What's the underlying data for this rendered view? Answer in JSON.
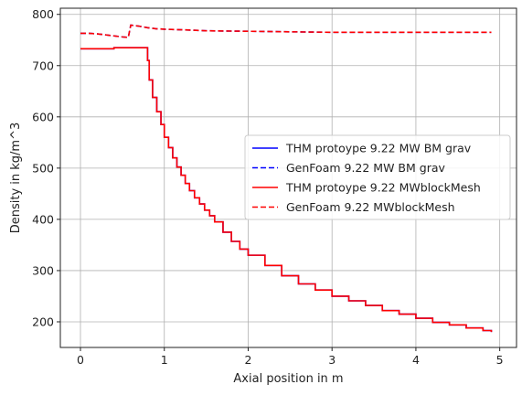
{
  "chart_data": {
    "type": "line",
    "title": "",
    "xlabel": "Axial position in m",
    "ylabel": "Density in kg/m^3",
    "xlim": [
      -0.24,
      5.2
    ],
    "ylim": [
      150,
      812
    ],
    "xticks": [
      0,
      1,
      2,
      3,
      4,
      5
    ],
    "yticks": [
      200,
      300,
      400,
      500,
      600,
      700,
      800
    ],
    "grid": true,
    "legend_position": "center-right",
    "series": [
      {
        "name": "THM protoype 9.22 MW BM grav",
        "color": "#0000ff",
        "style": "solid",
        "step": true,
        "x": [
          0,
          0.4,
          0.8,
          0.82,
          0.86,
          0.91,
          0.96,
          1.0,
          1.05,
          1.1,
          1.15,
          1.2,
          1.25,
          1.3,
          1.36,
          1.42,
          1.48,
          1.54,
          1.6,
          1.7,
          1.8,
          1.9,
          2.0,
          2.2,
          2.4,
          2.6,
          2.8,
          3.0,
          3.2,
          3.4,
          3.6,
          3.8,
          4.0,
          4.2,
          4.4,
          4.6,
          4.8,
          4.9
        ],
        "y": [
          733,
          735,
          710,
          672,
          638,
          610,
          585,
          560,
          540,
          520,
          502,
          486,
          470,
          456,
          442,
          430,
          418,
          407,
          395,
          375,
          357,
          342,
          330,
          310,
          290,
          274,
          262,
          250,
          241,
          232,
          222,
          215,
          207,
          199,
          194,
          188,
          183,
          180
        ]
      },
      {
        "name": "GenFoam 9.22 MW BM grav",
        "color": "#0000ff",
        "style": "dashed",
        "step": false,
        "x": [
          0,
          0.1,
          0.2,
          0.3,
          0.4,
          0.5,
          0.57,
          0.6,
          0.7,
          0.8,
          0.9,
          1.0,
          1.2,
          1.5,
          2.0,
          2.5,
          3.0,
          3.5,
          4.0,
          4.5,
          4.9
        ],
        "y": [
          763,
          763,
          762,
          760,
          758,
          756,
          755,
          779,
          777,
          774,
          772,
          771,
          770,
          768,
          767,
          766,
          765,
          765,
          765,
          765,
          765
        ]
      },
      {
        "name": "THM protoype 9.22 MWblockMesh",
        "color": "#ff0000",
        "style": "solid",
        "step": true,
        "x": [
          0,
          0.4,
          0.8,
          0.82,
          0.86,
          0.91,
          0.96,
          1.0,
          1.05,
          1.1,
          1.15,
          1.2,
          1.25,
          1.3,
          1.36,
          1.42,
          1.48,
          1.54,
          1.6,
          1.7,
          1.8,
          1.9,
          2.0,
          2.2,
          2.4,
          2.6,
          2.8,
          3.0,
          3.2,
          3.4,
          3.6,
          3.8,
          4.0,
          4.2,
          4.4,
          4.6,
          4.8,
          4.9
        ],
        "y": [
          733,
          735,
          710,
          672,
          638,
          610,
          585,
          560,
          540,
          520,
          502,
          486,
          470,
          456,
          442,
          430,
          418,
          407,
          395,
          375,
          357,
          342,
          330,
          310,
          290,
          274,
          262,
          250,
          241,
          232,
          222,
          215,
          207,
          199,
          194,
          188,
          183,
          180
        ]
      },
      {
        "name": "GenFoam 9.22 MWblockMesh",
        "color": "#ff0000",
        "style": "dashed",
        "step": false,
        "x": [
          0,
          0.1,
          0.2,
          0.3,
          0.4,
          0.5,
          0.57,
          0.6,
          0.7,
          0.8,
          0.9,
          1.0,
          1.2,
          1.5,
          2.0,
          2.5,
          3.0,
          3.5,
          4.0,
          4.5,
          4.9
        ],
        "y": [
          763,
          763,
          762,
          760,
          758,
          756,
          755,
          779,
          777,
          774,
          772,
          771,
          770,
          768,
          767,
          766,
          765,
          765,
          765,
          765,
          765
        ]
      }
    ]
  }
}
